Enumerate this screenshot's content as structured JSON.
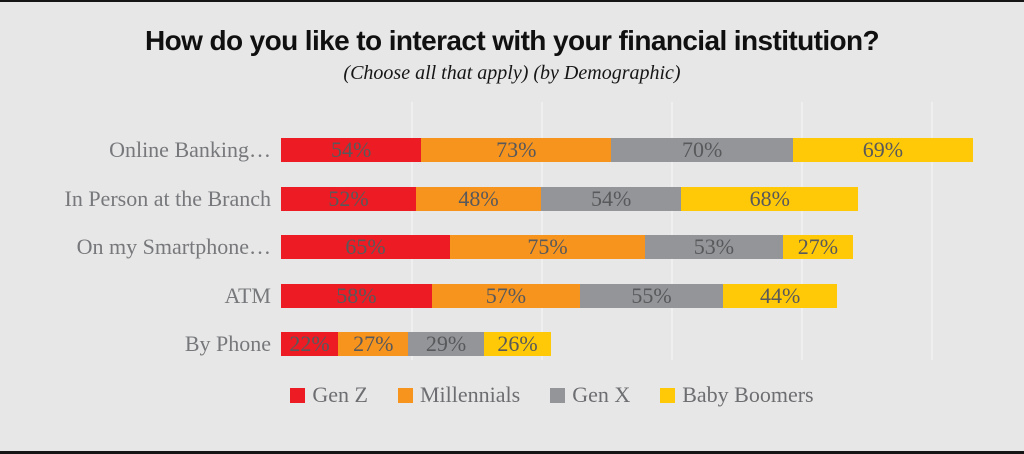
{
  "title": "How do you like to interact with your financial institution?",
  "subtitle": "(Choose all that apply) (by Demographic)",
  "colors": {
    "background": "#e7e7e7",
    "frame_border": "#151515",
    "gridline": "#efefef",
    "category_label": "#77787b",
    "value_label": "#58595b",
    "legend_label": "#6d6e71",
    "gen_z": "#ed1c24",
    "millennials": "#f7941e",
    "gen_x": "#939598",
    "baby_boomers": "#ffc907"
  },
  "chart_data": {
    "type": "bar",
    "variant": "horizontal-stacked",
    "title": "How do you like to interact with your financial institution?",
    "subtitle": "(Choose all that apply) (by Demographic)",
    "categories": [
      "Online Banking…",
      "In Person at the Branch",
      "On my Smartphone…",
      "ATM",
      "By Phone"
    ],
    "series": [
      {
        "name": "Gen Z",
        "color": "#ed1c24",
        "values": [
          54,
          52,
          65,
          58,
          22
        ]
      },
      {
        "name": "Millennials",
        "color": "#f7941e",
        "values": [
          73,
          48,
          75,
          57,
          27
        ]
      },
      {
        "name": "Gen X",
        "color": "#939598",
        "values": [
          70,
          54,
          53,
          55,
          29
        ]
      },
      {
        "name": "Baby Boomers",
        "color": "#ffc907",
        "values": [
          69,
          68,
          27,
          44,
          26
        ]
      }
    ],
    "value_suffix": "%",
    "xlabel": "",
    "ylabel": "",
    "xlim": [
      0,
      280
    ],
    "grid": "faint vertical lines",
    "legend_position": "bottom",
    "data_labels": "inside each segment, dark gray serif"
  }
}
